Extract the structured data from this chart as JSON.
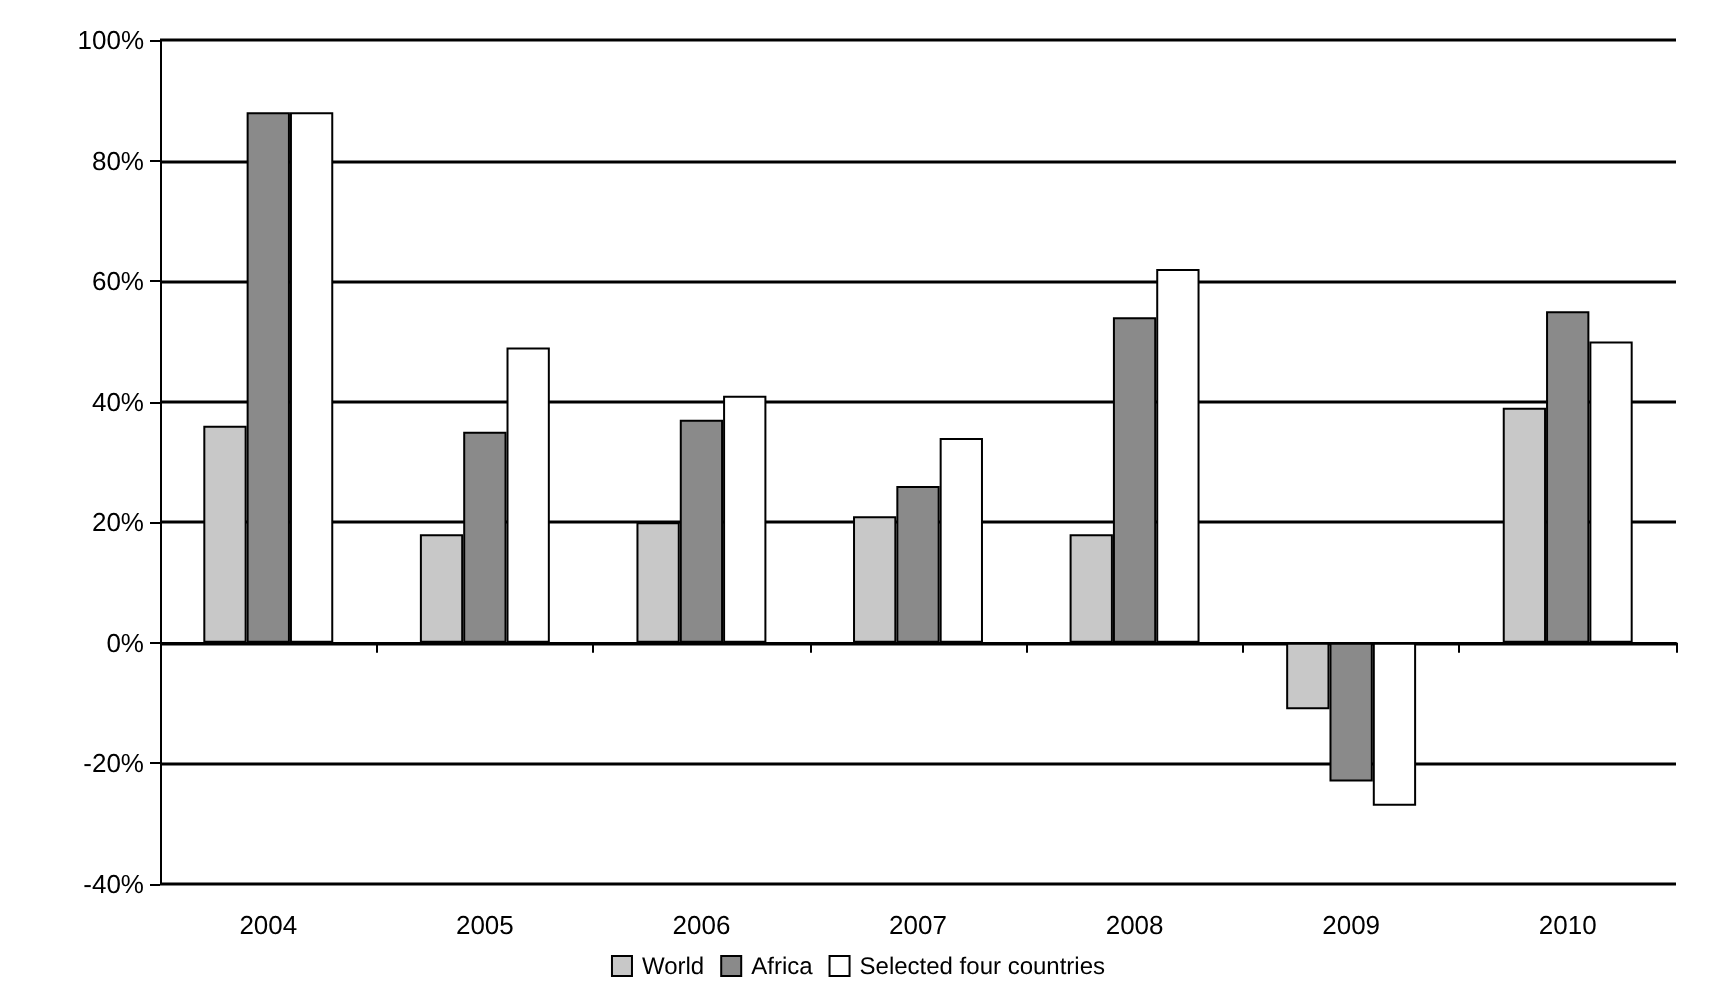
{
  "chart_data": {
    "type": "bar",
    "categories": [
      "2004",
      "2005",
      "2006",
      "2007",
      "2008",
      "2009",
      "2010"
    ],
    "series": [
      {
        "name": "World",
        "color": "#c8c8c8",
        "values": [
          36,
          18,
          20,
          21,
          18,
          -11,
          39
        ]
      },
      {
        "name": "Africa",
        "color": "#8a8a8a",
        "values": [
          88,
          35,
          37,
          26,
          54,
          -23,
          55
        ]
      },
      {
        "name": "Selected four countries",
        "color": "#ffffff",
        "values": [
          88,
          49,
          41,
          34,
          62,
          -27,
          50
        ]
      }
    ],
    "ylim": [
      -40,
      100
    ],
    "yticks": [
      {
        "value": -40,
        "label": "-40%"
      },
      {
        "value": -20,
        "label": "-20%"
      },
      {
        "value": 0,
        "label": "0%"
      },
      {
        "value": 20,
        "label": "20%"
      },
      {
        "value": 40,
        "label": "40%"
      },
      {
        "value": 60,
        "label": "60%"
      },
      {
        "value": 80,
        "label": "80%"
      },
      {
        "value": 100,
        "label": "100%"
      }
    ],
    "grid": "y",
    "legend": "bottom"
  }
}
